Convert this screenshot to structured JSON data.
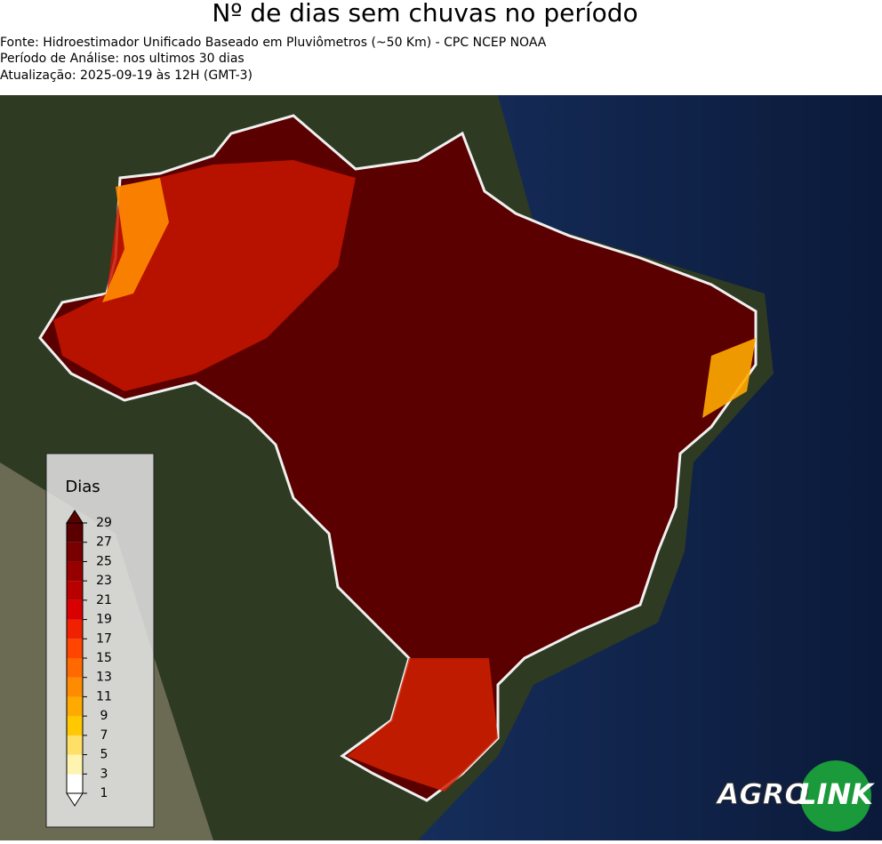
{
  "header": {
    "title": "Nº de dias sem chuvas no período",
    "source": "Fonte: Hidroestimador Unificado Baseado em Pluviômetros (~50 Km) - CPC NCEP NOAA",
    "period": "Período de Análise: nos ultimos 30 dias",
    "updated": "Atualização: 2025-09-19 às 12H (GMT-3)"
  },
  "legend": {
    "title": "Dias",
    "ticks": [
      1,
      3,
      5,
      7,
      9,
      11,
      13,
      15,
      17,
      19,
      21,
      23,
      25,
      27,
      29
    ],
    "colors": [
      "#ffffff",
      "#fff3b0",
      "#ffe066",
      "#ffc800",
      "#ffaa00",
      "#ff8c00",
      "#ff6a00",
      "#ff4500",
      "#f02000",
      "#d80000",
      "#b80000",
      "#960000",
      "#780000",
      "#5a0000"
    ]
  },
  "logo": {
    "left": "AGRO",
    "right": "LINK"
  }
}
